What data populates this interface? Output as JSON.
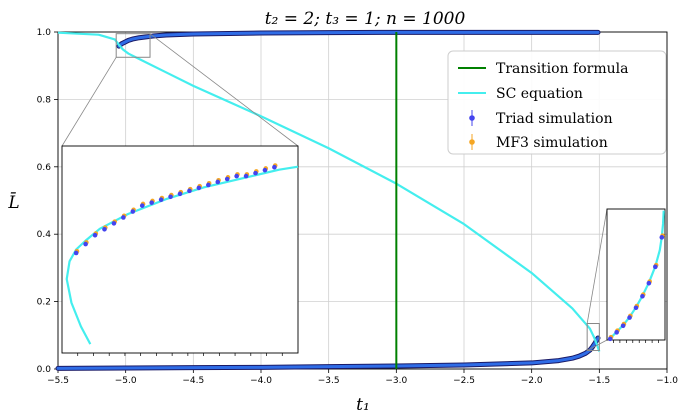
{
  "chart_data": {
    "type": "line",
    "title": "t₂ = 2;  t₃ = 1;  n = 1000",
    "xlabel": "t₁",
    "ylabel": "L̄",
    "xlim": [
      -5.5,
      -1.0
    ],
    "ylim": [
      0.0,
      1.0
    ],
    "xticks": [
      -5.5,
      -5.0,
      -4.5,
      -4.0,
      -3.5,
      -3.0,
      -2.5,
      -2.0,
      -1.5,
      -1.0
    ],
    "xtick_labels": [
      "−5.5",
      "−5.0",
      "−4.5",
      "−4.0",
      "−3.5",
      "−3.0",
      "−2.5",
      "−2.0",
      "−1.5",
      "−1.0"
    ],
    "yticks": [
      0.0,
      0.2,
      0.4,
      0.6,
      0.8,
      1.0
    ],
    "ytick_labels": [
      "0.0",
      "0.2",
      "0.4",
      "0.6",
      "0.8",
      "1.0"
    ],
    "grid": true,
    "legend_position": "top-right",
    "series": [
      {
        "name": "Transition formula",
        "kind": "vline",
        "x": -3.0,
        "color": "#008000"
      },
      {
        "name": "SC equation",
        "kind": "line",
        "color": "#44eeee",
        "x": [
          -5.5,
          -5.2,
          -5.08,
          -5.05,
          -5.02,
          -4.98,
          -4.9,
          -4.7,
          -4.5,
          -4.0,
          -3.5,
          -3.0,
          -2.5,
          -2.0,
          -1.7,
          -1.57,
          -1.54,
          -1.52,
          -1.5
        ],
        "y": [
          0.998,
          0.992,
          0.978,
          0.962,
          0.948,
          0.936,
          0.92,
          0.88,
          0.84,
          0.75,
          0.655,
          0.55,
          0.43,
          0.285,
          0.18,
          0.12,
          0.095,
          0.075,
          0.052
        ]
      },
      {
        "name": "Triad simulation",
        "kind": "points",
        "color": "#4444ee",
        "x": [
          -5.05,
          -5.03,
          -5.0,
          -4.98,
          -4.95,
          -4.9,
          -4.8,
          -4.7,
          -4.5,
          -4.0,
          -3.5,
          -3.0,
          -2.5,
          -2.0,
          -1.8,
          -1.7,
          -1.65,
          -1.6,
          -1.57,
          -1.55,
          -1.53,
          -1.51
        ],
        "y": [
          0.958,
          0.965,
          0.971,
          0.975,
          0.979,
          0.983,
          0.988,
          0.991,
          0.994,
          0.997,
          0.998,
          0.999,
          0.999,
          0.999,
          0.999,
          0.999,
          0.999,
          0.999,
          0.999,
          0.999,
          0.999,
          0.999
        ]
      },
      {
        "name": "MF3 simulation",
        "kind": "points",
        "color": "#f5a623",
        "x": [
          -5.05,
          -5.03,
          -5.0,
          -4.98,
          -4.95,
          -4.9,
          -4.8,
          -4.7,
          -4.5,
          -4.0,
          -3.5,
          -3.0,
          -2.5,
          -2.0,
          -1.8,
          -1.7,
          -1.65,
          -1.6,
          -1.57,
          -1.55,
          -1.53,
          -1.51
        ],
        "y": [
          0.959,
          0.966,
          0.972,
          0.976,
          0.98,
          0.984,
          0.988,
          0.991,
          0.994,
          0.997,
          0.998,
          0.999,
          0.999,
          0.999,
          0.999,
          0.999,
          0.999,
          0.999,
          0.999,
          0.999,
          0.999,
          0.999
        ]
      }
    ],
    "lower_branch": {
      "x": [
        -5.5,
        -5.0,
        -4.5,
        -4.0,
        -3.5,
        -3.0,
        -2.5,
        -2.0,
        -1.8,
        -1.7,
        -1.65,
        -1.6,
        -1.57,
        -1.55,
        -1.53,
        -1.51
      ],
      "y": [
        0.002,
        0.003,
        0.004,
        0.005,
        0.007,
        0.009,
        0.012,
        0.018,
        0.025,
        0.032,
        0.038,
        0.047,
        0.056,
        0.066,
        0.078,
        0.092
      ]
    },
    "inset_left": {
      "xlim": [
        -5.07,
        -4.82
      ],
      "ylim": [
        0.925,
        0.995
      ],
      "sc_x": [
        -5.04,
        -5.05,
        -5.06,
        -5.065,
        -5.062,
        -5.055,
        -5.045,
        -5.03,
        -5.0,
        -4.96,
        -4.92,
        -4.88,
        -4.84,
        -4.82
      ],
      "sc_y": [
        0.928,
        0.934,
        0.942,
        0.95,
        0.956,
        0.96,
        0.963,
        0.967,
        0.972,
        0.977,
        0.981,
        0.984,
        0.987,
        0.988
      ],
      "pts_x": [
        -5.055,
        -5.045,
        -5.035,
        -5.025,
        -5.015,
        -5.005,
        -4.995,
        -4.985,
        -4.975,
        -4.965,
        -4.955,
        -4.945,
        -4.935,
        -4.925,
        -4.915,
        -4.905,
        -4.895,
        -4.885,
        -4.875,
        -4.865,
        -4.855,
        -4.845
      ],
      "pts_y": [
        0.959,
        0.962,
        0.965,
        0.967,
        0.969,
        0.971,
        0.973,
        0.975,
        0.976,
        0.977,
        0.978,
        0.979,
        0.98,
        0.981,
        0.982,
        0.983,
        0.984,
        0.985,
        0.985,
        0.986,
        0.987,
        0.988
      ]
    },
    "inset_right": {
      "xlim": [
        -1.59,
        -1.5
      ],
      "ylim": [
        0.055,
        0.135
      ],
      "sc_x": [
        -1.585,
        -1.575,
        -1.565,
        -1.555,
        -1.545,
        -1.535,
        -1.525,
        -1.515,
        -1.508,
        -1.505,
        -1.503,
        -1.502
      ],
      "sc_y": [
        0.056,
        0.06,
        0.064,
        0.069,
        0.075,
        0.082,
        0.09,
        0.1,
        0.11,
        0.118,
        0.126,
        0.134
      ],
      "pts_x": [
        -1.585,
        -1.575,
        -1.565,
        -1.555,
        -1.545,
        -1.535,
        -1.525,
        -1.515,
        -1.505
      ],
      "pts_y": [
        0.056,
        0.06,
        0.064,
        0.069,
        0.075,
        0.082,
        0.09,
        0.1,
        0.118
      ]
    }
  }
}
